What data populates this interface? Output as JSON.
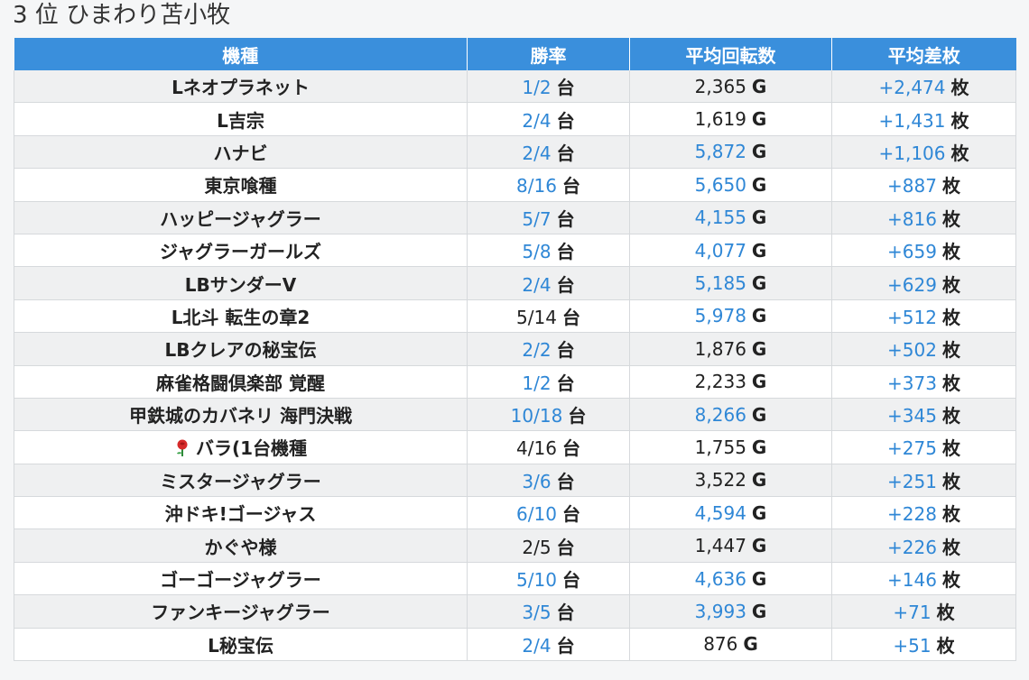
{
  "page_title": "3 位 ひまわり苫小牧",
  "headers": [
    "機種",
    "勝率",
    "平均回転数",
    "平均差枚"
  ],
  "units": {
    "rate": "台",
    "spins": "G",
    "diff": "枚"
  },
  "rows": [
    {
      "machine": "Lネオプラネット",
      "rate": "1/2",
      "rate_hl": true,
      "spins": "2,365",
      "spins_hl": false,
      "diff": "+2,474"
    },
    {
      "machine": "L吉宗",
      "rate": "2/4",
      "rate_hl": true,
      "spins": "1,619",
      "spins_hl": false,
      "diff": "+1,431"
    },
    {
      "machine": "ハナビ",
      "rate": "2/4",
      "rate_hl": true,
      "spins": "5,872",
      "spins_hl": true,
      "diff": "+1,106"
    },
    {
      "machine": "東京喰種",
      "rate": "8/16",
      "rate_hl": true,
      "spins": "5,650",
      "spins_hl": true,
      "diff": "+887"
    },
    {
      "machine": "ハッピージャグラー",
      "rate": "5/7",
      "rate_hl": true,
      "spins": "4,155",
      "spins_hl": true,
      "diff": "+816"
    },
    {
      "machine": "ジャグラーガールズ",
      "rate": "5/8",
      "rate_hl": true,
      "spins": "4,077",
      "spins_hl": true,
      "diff": "+659"
    },
    {
      "machine": "LBサンダーV",
      "rate": "2/4",
      "rate_hl": true,
      "spins": "5,185",
      "spins_hl": true,
      "diff": "+629"
    },
    {
      "machine": "L北斗 転生の章2",
      "rate": "5/14",
      "rate_hl": false,
      "spins": "5,978",
      "spins_hl": true,
      "diff": "+512"
    },
    {
      "machine": "LBクレアの秘宝伝",
      "rate": "2/2",
      "rate_hl": true,
      "spins": "1,876",
      "spins_hl": false,
      "diff": "+502"
    },
    {
      "machine": "麻雀格闘倶楽部 覚醒",
      "rate": "1/2",
      "rate_hl": true,
      "spins": "2,233",
      "spins_hl": false,
      "diff": "+373"
    },
    {
      "machine": "甲鉄城のカバネリ 海門決戦",
      "rate": "10/18",
      "rate_hl": true,
      "spins": "8,266",
      "spins_hl": true,
      "diff": "+345"
    },
    {
      "machine": "バラ(1台機種",
      "icon": "rose-icon",
      "rate": "4/16",
      "rate_hl": false,
      "spins": "1,755",
      "spins_hl": false,
      "diff": "+275"
    },
    {
      "machine": "ミスタージャグラー",
      "rate": "3/6",
      "rate_hl": true,
      "spins": "3,522",
      "spins_hl": false,
      "diff": "+251"
    },
    {
      "machine": "沖ドキ!ゴージャス",
      "rate": "6/10",
      "rate_hl": true,
      "spins": "4,594",
      "spins_hl": true,
      "diff": "+228"
    },
    {
      "machine": "かぐや様",
      "rate": "2/5",
      "rate_hl": false,
      "spins": "1,447",
      "spins_hl": false,
      "diff": "+226"
    },
    {
      "machine": "ゴーゴージャグラー",
      "rate": "5/10",
      "rate_hl": true,
      "spins": "4,636",
      "spins_hl": true,
      "diff": "+146"
    },
    {
      "machine": "ファンキージャグラー",
      "rate": "3/5",
      "rate_hl": true,
      "spins": "3,993",
      "spins_hl": true,
      "diff": "+71"
    },
    {
      "machine": "L秘宝伝",
      "rate": "2/4",
      "rate_hl": true,
      "spins": "876",
      "spins_hl": false,
      "diff": "+51"
    }
  ],
  "colors": {
    "header_bg": "#3a8fdc",
    "highlight": "#2f87d6",
    "odd_row": "#eff0f1"
  }
}
